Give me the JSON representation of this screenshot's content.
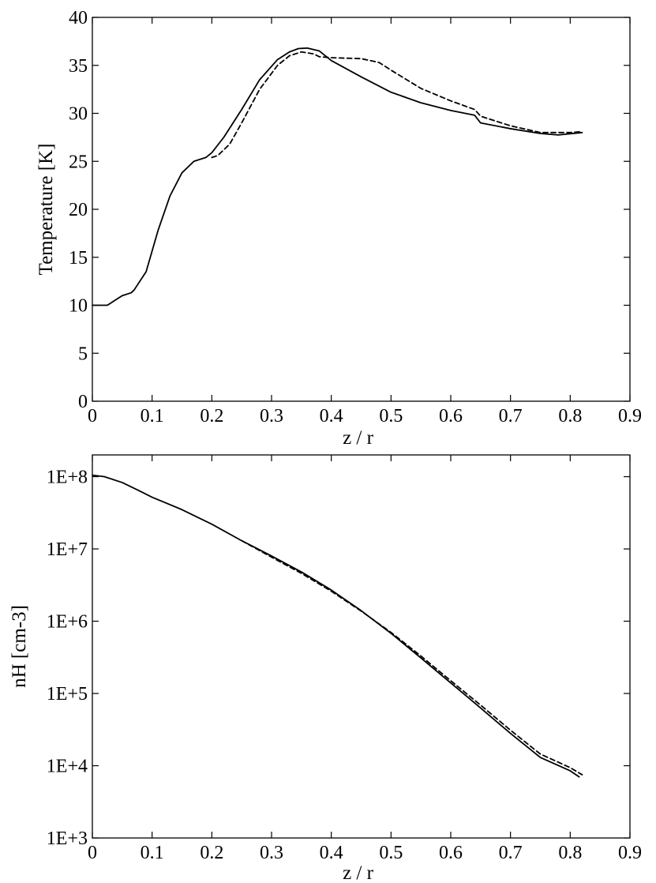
{
  "chart_data": [
    {
      "type": "line",
      "xlabel": "z / r",
      "ylabel": "Temperature [K]",
      "xlim": [
        0,
        0.9
      ],
      "ylim": [
        0,
        40
      ],
      "yscale": "linear",
      "grid": false,
      "xticks": [
        "0",
        "0.1",
        "0.2",
        "0.3",
        "0.4",
        "0.5",
        "0.6",
        "0.7",
        "0.8",
        "0.9"
      ],
      "yticks": [
        "0",
        "5",
        "10",
        "15",
        "20",
        "25",
        "30",
        "35",
        "40"
      ],
      "series": [
        {
          "style": "solid",
          "x": [
            0,
            0.025,
            0.03,
            0.045,
            0.05,
            0.065,
            0.07,
            0.09,
            0.11,
            0.13,
            0.15,
            0.17,
            0.19,
            0.2,
            0.22,
            0.25,
            0.28,
            0.31,
            0.33,
            0.345,
            0.36,
            0.38,
            0.4,
            0.45,
            0.5,
            0.55,
            0.6,
            0.64,
            0.65,
            0.7,
            0.75,
            0.78,
            0.82
          ],
          "y": [
            10,
            10,
            10.2,
            10.8,
            11.0,
            11.3,
            11.6,
            13.5,
            17.8,
            21.4,
            23.8,
            25.0,
            25.4,
            25.9,
            27.5,
            30.4,
            33.5,
            35.6,
            36.4,
            36.75,
            36.8,
            36.5,
            35.5,
            33.8,
            32.2,
            31.1,
            30.3,
            29.8,
            29.0,
            28.4,
            27.9,
            27.75,
            28.0
          ]
        },
        {
          "style": "dashed",
          "x": [
            0.2,
            0.21,
            0.23,
            0.25,
            0.28,
            0.31,
            0.33,
            0.35,
            0.37,
            0.38,
            0.4,
            0.45,
            0.48,
            0.5,
            0.55,
            0.6,
            0.64,
            0.65,
            0.7,
            0.75,
            0.8,
            0.82
          ],
          "y": [
            25.4,
            25.6,
            26.8,
            29.0,
            32.5,
            35.0,
            36.0,
            36.4,
            36.2,
            35.9,
            35.8,
            35.7,
            35.3,
            34.5,
            32.6,
            31.3,
            30.4,
            29.7,
            28.7,
            28.0,
            28.0,
            28.1
          ]
        }
      ]
    },
    {
      "type": "line",
      "xlabel": "z / r",
      "ylabel": "nH [cm-3]",
      "xlim": [
        0,
        0.9
      ],
      "ylim": [
        1000,
        200000000
      ],
      "yscale": "log",
      "grid": false,
      "xticks": [
        "0",
        "0.1",
        "0.2",
        "0.3",
        "0.4",
        "0.5",
        "0.6",
        "0.7",
        "0.8",
        "0.9"
      ],
      "yticks": [
        "1E+3",
        "1E+4",
        "1E+5",
        "1E+6",
        "1E+7",
        "1E+8"
      ],
      "series": [
        {
          "style": "solid",
          "x": [
            0,
            0.02,
            0.05,
            0.08,
            0.1,
            0.15,
            0.2,
            0.25,
            0.3,
            0.35,
            0.4,
            0.45,
            0.5,
            0.55,
            0.6,
            0.65,
            0.7,
            0.75,
            0.8,
            0.815
          ],
          "y": [
            105000000,
            100000000,
            83000000,
            63000000,
            52000000,
            35000000,
            22000000,
            13000000,
            8000000,
            4800000,
            2700000,
            1400000,
            680000,
            310000,
            140000,
            63000,
            28000,
            13000,
            8500,
            7000
          ]
        },
        {
          "style": "dashed",
          "x": [
            0.25,
            0.3,
            0.35,
            0.4,
            0.45,
            0.5,
            0.55,
            0.6,
            0.65,
            0.7,
            0.75,
            0.8,
            0.82
          ],
          "y": [
            13000000,
            7700000,
            4600000,
            2600000,
            1380000,
            700000,
            330000,
            150000,
            69000,
            31000,
            14500,
            9400,
            7500
          ]
        }
      ]
    }
  ]
}
